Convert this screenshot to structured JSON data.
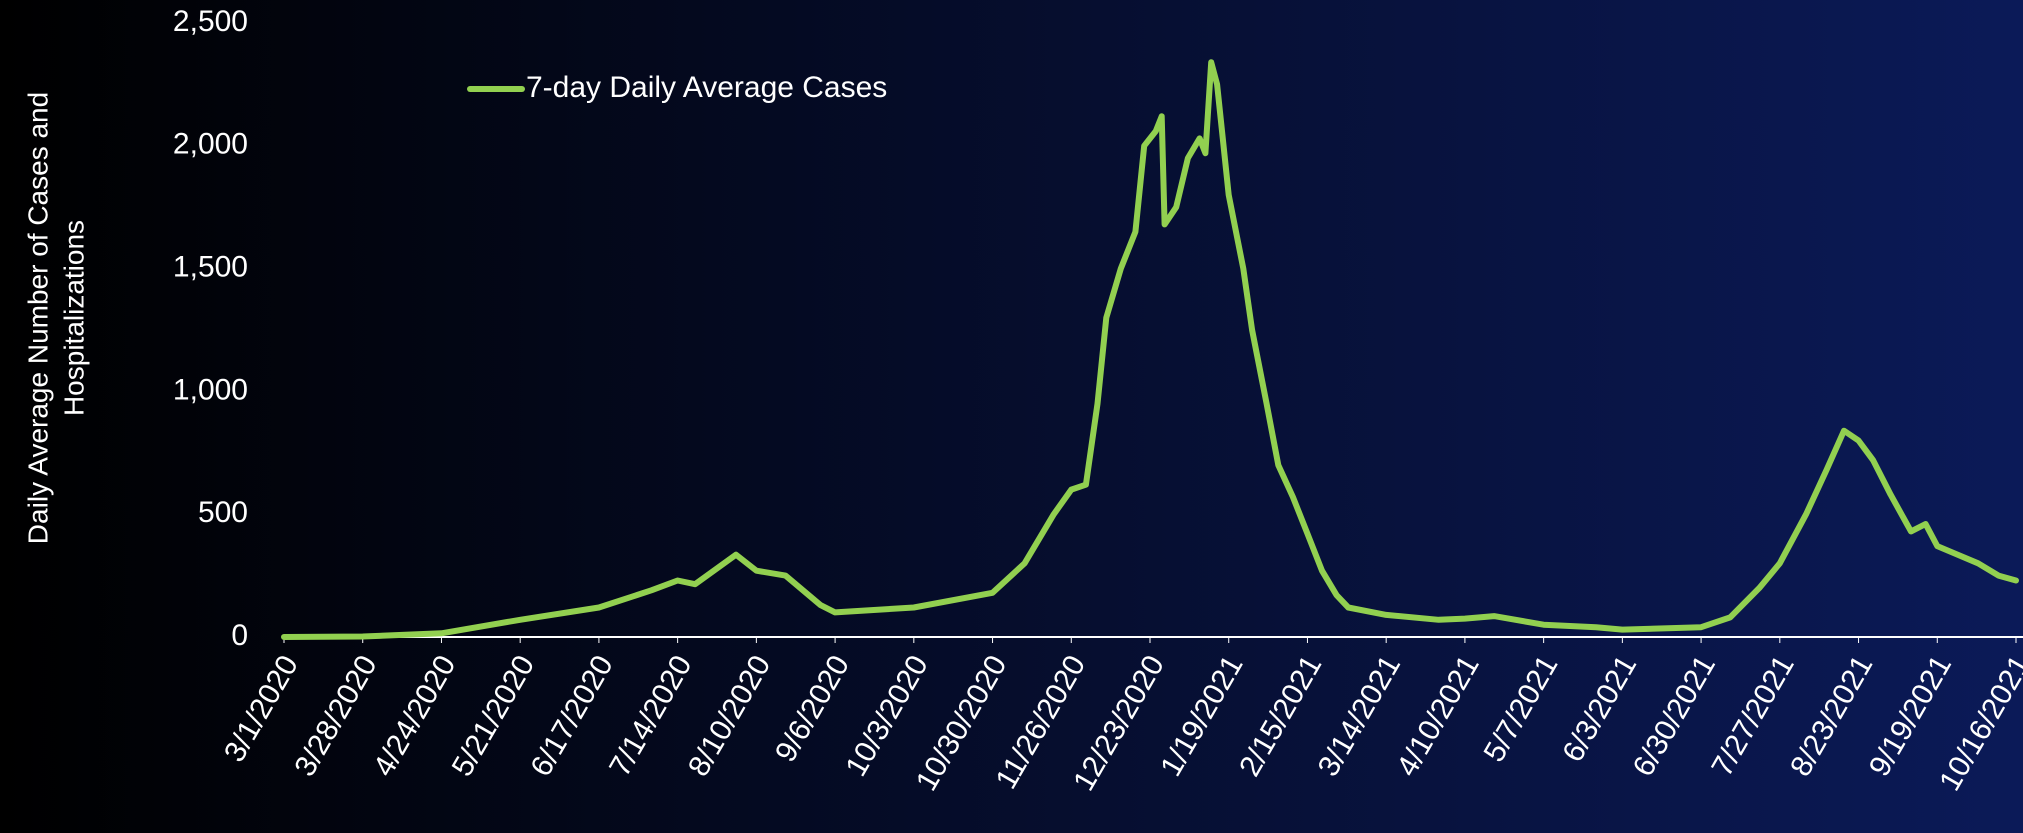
{
  "chart_data": {
    "type": "line",
    "y_label": [
      "Daily Average Number of Cases and",
      "Hospitalizations"
    ],
    "x": [
      "3/1/2020",
      "3/28/2020",
      "4/24/2020",
      "5/21/2020",
      "6/17/2020",
      "7/5/2020",
      "7/14/2020",
      "7/20/2020",
      "8/3/2020",
      "8/10/2020",
      "8/20/2020",
      "9/1/2020",
      "9/6/2020",
      "10/3/2020",
      "10/30/2020",
      "11/10/2020",
      "11/20/2020",
      "11/26/2020",
      "12/1/2020",
      "12/5/2020",
      "12/8/2020",
      "12/13/2020",
      "12/18/2020",
      "12/21/2020",
      "12/25/2020",
      "12/27/2020",
      "12/28/2020",
      "1/1/2021",
      "1/5/2021",
      "1/9/2021",
      "1/11/2021",
      "1/13/2021",
      "1/15/2021",
      "1/19/2021",
      "1/24/2021",
      "1/27/2021",
      "2/1/2021",
      "2/5/2021",
      "2/10/2021",
      "2/15/2021",
      "2/20/2021",
      "2/25/2021",
      "3/1/2021",
      "3/14/2021",
      "4/1/2021",
      "4/10/2021",
      "4/20/2021",
      "5/7/2021",
      "5/25/2021",
      "6/3/2021",
      "6/30/2021",
      "7/10/2021",
      "7/20/2021",
      "7/27/2021",
      "8/5/2021",
      "8/12/2021",
      "8/18/2021",
      "8/23/2021",
      "8/28/2021",
      "9/3/2021",
      "9/10/2021",
      "9/15/2021",
      "9/19/2021",
      "9/25/2021",
      "10/3/2021",
      "10/10/2021",
      "10/16/2021"
    ],
    "series": [
      {
        "name": "7-day Daily Average Cases",
        "color": "#92d050",
        "values": [
          0,
          2,
          15,
          70,
          120,
          190,
          230,
          215,
          335,
          270,
          250,
          130,
          100,
          120,
          180,
          300,
          500,
          600,
          620,
          950,
          1300,
          1500,
          1650,
          2000,
          2060,
          2120,
          1680,
          1750,
          1950,
          2030,
          1970,
          2340,
          2250,
          1800,
          1500,
          1250,
          950,
          700,
          570,
          420,
          270,
          170,
          120,
          90,
          70,
          75,
          85,
          50,
          40,
          30,
          40,
          80,
          200,
          300,
          500,
          680,
          840,
          800,
          720,
          580,
          430,
          460,
          370,
          340,
          300,
          250,
          230
        ]
      }
    ],
    "xticks": [
      "3/1/2020",
      "3/28/2020",
      "4/24/2020",
      "5/21/2020",
      "6/17/2020",
      "7/14/2020",
      "8/10/2020",
      "9/6/2020",
      "10/3/2020",
      "10/30/2020",
      "11/26/2020",
      "12/23/2020",
      "1/19/2021",
      "2/15/2021",
      "3/14/2021",
      "4/10/2021",
      "5/7/2021",
      "6/3/2021",
      "6/30/2021",
      "7/27/2021",
      "8/23/2021",
      "9/19/2021",
      "10/16/2021"
    ],
    "ylim": [
      0,
      2500
    ],
    "yticks": [
      0,
      {
        "value": 500,
        "label": "500"
      },
      {
        "value": 1000,
        "label": "1,000"
      },
      {
        "value": 1500,
        "label": "1,500"
      },
      {
        "value": 2000,
        "label": "2,000"
      },
      {
        "value": 2500,
        "label": "2,500"
      }
    ],
    "legend": "top-left"
  }
}
